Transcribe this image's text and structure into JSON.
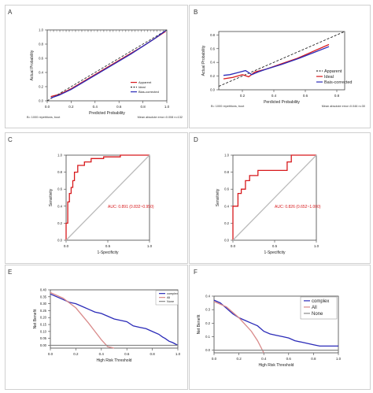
{
  "panels": [
    {
      "id": "A",
      "letter": "A",
      "chart_data": {
        "type": "line",
        "xlabel": "Predicted Probability",
        "ylabel": "Actual Probability",
        "xlim": [
          0,
          1
        ],
        "ylim": [
          0,
          1
        ],
        "xticks": [
          "0.0",
          "0.2",
          "0.4",
          "0.6",
          "0.8",
          "1.0"
        ],
        "yticks": [
          "0.0",
          "0.2",
          "0.4",
          "0.6",
          "0.8",
          "1.0"
        ],
        "series": [
          {
            "name": "Apparent",
            "style": "solid",
            "color": "#d7191c",
            "x": [
              0.03,
              0.1,
              0.2,
              0.3,
              0.4,
              0.5,
              0.6,
              0.7,
              0.8,
              0.9,
              0.99
            ],
            "y": [
              0.06,
              0.09,
              0.17,
              0.27,
              0.37,
              0.47,
              0.57,
              0.67,
              0.77,
              0.88,
              0.98
            ]
          },
          {
            "name": "Ideal",
            "style": "dashed",
            "color": "#333333",
            "x": [
              0,
              1
            ],
            "y": [
              0,
              1
            ]
          },
          {
            "name": "Bias-corrected",
            "style": "solid",
            "color": "#2b2bb8",
            "x": [
              0.03,
              0.1,
              0.2,
              0.3,
              0.4,
              0.5,
              0.6,
              0.7,
              0.8,
              0.9,
              0.99
            ],
            "y": [
              0.04,
              0.08,
              0.16,
              0.26,
              0.36,
              0.46,
              0.56,
              0.66,
              0.77,
              0.88,
              0.99
            ]
          }
        ],
        "legend_position": "bottom-right",
        "footer_left": "B= 1000 repetitions, boot",
        "footer_right": "Mean absolute error=0.008 n=132"
      }
    },
    {
      "id": "B",
      "letter": "B",
      "chart_data": {
        "type": "line",
        "xlabel": "Perdicted Probability",
        "ylabel": "Actual Probability",
        "xlim": [
          0.05,
          0.85
        ],
        "ylim": [
          0,
          0.85
        ],
        "xticks": [
          "0.2",
          "0.4",
          "0.6",
          "0.8"
        ],
        "yticks": [
          "0.0",
          "0.2",
          "0.4",
          "0.6",
          "0.8"
        ],
        "series": [
          {
            "name": "Apparent",
            "style": "dashed",
            "color": "#222222",
            "x": [
              0.05,
              0.85
            ],
            "y": [
              0.05,
              0.85
            ]
          },
          {
            "name": "Ideal",
            "style": "solid",
            "color": "#d7191c",
            "x": [
              0.08,
              0.14,
              0.2,
              0.24,
              0.28,
              0.35,
              0.45,
              0.55,
              0.65,
              0.75
            ],
            "y": [
              0.16,
              0.18,
              0.22,
              0.19,
              0.26,
              0.3,
              0.38,
              0.46,
              0.56,
              0.66
            ]
          },
          {
            "name": "Bais-corrected",
            "style": "solid",
            "color": "#2b2bb8",
            "x": [
              0.08,
              0.12,
              0.17,
              0.22,
              0.26,
              0.3,
              0.35,
              0.45,
              0.55,
              0.65,
              0.75
            ],
            "y": [
              0.21,
              0.22,
              0.25,
              0.28,
              0.22,
              0.26,
              0.3,
              0.37,
              0.45,
              0.54,
              0.63
            ]
          }
        ],
        "legend_position": "bottom-right",
        "footer_left": "B= 1000 repetitions, boot",
        "footer_right": "Mean absolute error=0.046 n=30"
      }
    },
    {
      "id": "C",
      "letter": "C",
      "chart_data": {
        "type": "line",
        "xlabel": "1-Specificity",
        "ylabel": "Sensitivity",
        "xlim": [
          0,
          1
        ],
        "ylim": [
          0,
          1
        ],
        "xticks": [
          "0.0",
          "0.5",
          "1.0"
        ],
        "yticks": [
          "0.0",
          "0.2",
          "0.4",
          "0.6",
          "0.8",
          "1.0"
        ],
        "series": [
          {
            "name": "ROC",
            "style": "solid",
            "color": "#d7191c",
            "x": [
              0,
              0,
              0.02,
              0.02,
              0.04,
              0.04,
              0.06,
              0.06,
              0.08,
              0.08,
              0.1,
              0.1,
              0.14,
              0.14,
              0.22,
              0.22,
              0.3,
              0.3,
              0.45,
              0.45,
              0.65,
              0.65,
              1.0
            ],
            "y": [
              0,
              0.2,
              0.2,
              0.45,
              0.45,
              0.55,
              0.55,
              0.62,
              0.62,
              0.7,
              0.7,
              0.8,
              0.8,
              0.88,
              0.88,
              0.92,
              0.92,
              0.96,
              0.96,
              0.98,
              0.98,
              1,
              1
            ]
          },
          {
            "name": "diagonal",
            "style": "solid",
            "color": "#bbbbbb",
            "x": [
              0,
              1
            ],
            "y": [
              0,
              1
            ]
          }
        ],
        "annotation": "AUC: 0.891 (0.832~0.950)"
      }
    },
    {
      "id": "D",
      "letter": "D",
      "chart_data": {
        "type": "line",
        "xlabel": "1-Specificity",
        "ylabel": "Sensitivity",
        "xlim": [
          0,
          1
        ],
        "ylim": [
          0,
          1
        ],
        "xticks": [
          "0.0",
          "0.5",
          "1.0"
        ],
        "yticks": [
          "0.0",
          "0.2",
          "0.4",
          "0.6",
          "0.8",
          "1.0"
        ],
        "series": [
          {
            "name": "ROC",
            "style": "solid",
            "color": "#d7191c",
            "x": [
              0,
              0,
              0.06,
              0.06,
              0.1,
              0.1,
              0.15,
              0.15,
              0.2,
              0.2,
              0.3,
              0.3,
              0.45,
              0.45,
              0.65,
              0.65,
              0.7,
              0.7,
              1.0
            ],
            "y": [
              0,
              0.4,
              0.4,
              0.55,
              0.55,
              0.6,
              0.6,
              0.7,
              0.7,
              0.76,
              0.76,
              0.82,
              0.82,
              0.82,
              0.82,
              0.92,
              0.92,
              1,
              1
            ]
          },
          {
            "name": "diagonal",
            "style": "solid",
            "color": "#bbbbbb",
            "x": [
              0,
              1
            ],
            "y": [
              0,
              1
            ]
          }
        ],
        "annotation": "AUC: 0.826 (0.652~1.000)"
      }
    },
    {
      "id": "E",
      "letter": "E",
      "chart_data": {
        "type": "line",
        "xlabel": "High Risk Threshold",
        "ylabel": "Net Benefit",
        "xlim": [
          0,
          1
        ],
        "ylim": [
          -0.02,
          0.4
        ],
        "xticks": [
          "0.0",
          "0.2",
          "0.4",
          "0.6",
          "0.8",
          "1.0"
        ],
        "yticks": [
          "0.00",
          "0.05",
          "0.10",
          "0.15",
          "0.20",
          "0.25",
          "0.30",
          "0.35",
          "0.40"
        ],
        "series": [
          {
            "name": "complex",
            "style": "solid",
            "color": "#2b2bb8",
            "x": [
              0,
              0.05,
              0.1,
              0.15,
              0.2,
              0.25,
              0.3,
              0.35,
              0.4,
              0.45,
              0.5,
              0.55,
              0.6,
              0.65,
              0.7,
              0.75,
              0.8,
              0.85,
              0.88,
              0.9,
              0.93,
              0.96,
              1.0
            ],
            "y": [
              0.37,
              0.35,
              0.33,
              0.31,
              0.3,
              0.28,
              0.26,
              0.24,
              0.23,
              0.21,
              0.19,
              0.18,
              0.17,
              0.14,
              0.13,
              0.12,
              0.1,
              0.08,
              0.06,
              0.05,
              0.03,
              0.02,
              0.0
            ]
          },
          {
            "name": "All",
            "style": "solid",
            "color": "#d98a8a",
            "x": [
              0,
              0.1,
              0.2,
              0.3,
              0.35,
              0.4,
              0.45,
              0.5
            ],
            "y": [
              0.38,
              0.34,
              0.27,
              0.16,
              0.1,
              0.04,
              -0.01,
              -0.02
            ]
          },
          {
            "name": "None",
            "style": "solid",
            "color": "#888888",
            "x": [
              0,
              1
            ],
            "y": [
              0,
              0
            ]
          }
        ],
        "legend_position": "top-right"
      }
    },
    {
      "id": "F",
      "letter": "F",
      "chart_data": {
        "type": "line",
        "xlabel": "High Risk Threshold",
        "ylabel": "Net Benefit",
        "xlim": [
          0,
          1
        ],
        "ylim": [
          -0.02,
          0.4
        ],
        "xticks": [
          "0.0",
          "0.2",
          "0.4",
          "0.6",
          "0.8",
          "1.0"
        ],
        "yticks": [
          "0.0",
          "0.1",
          "0.2",
          "0.3",
          "0.4"
        ],
        "series": [
          {
            "name": "complex",
            "style": "solid",
            "color": "#2b2bb8",
            "x": [
              0,
              0.05,
              0.1,
              0.15,
              0.2,
              0.25,
              0.3,
              0.35,
              0.4,
              0.45,
              0.5,
              0.55,
              0.6,
              0.65,
              0.7,
              0.75,
              0.8,
              0.85,
              0.9,
              0.95,
              1.0
            ],
            "y": [
              0.37,
              0.35,
              0.31,
              0.27,
              0.24,
              0.22,
              0.2,
              0.18,
              0.14,
              0.12,
              0.11,
              0.1,
              0.09,
              0.07,
              0.06,
              0.05,
              0.04,
              0.03,
              0.03,
              0.03,
              0.03
            ]
          },
          {
            "name": "All",
            "style": "solid",
            "color": "#d98a8a",
            "x": [
              0,
              0.1,
              0.2,
              0.3,
              0.35,
              0.4
            ],
            "y": [
              0.36,
              0.32,
              0.24,
              0.14,
              0.07,
              -0.02
            ]
          },
          {
            "name": "None",
            "style": "solid",
            "color": "#888888",
            "x": [
              0,
              1
            ],
            "y": [
              0,
              0
            ]
          }
        ],
        "legend_position": "top-right"
      }
    }
  ]
}
